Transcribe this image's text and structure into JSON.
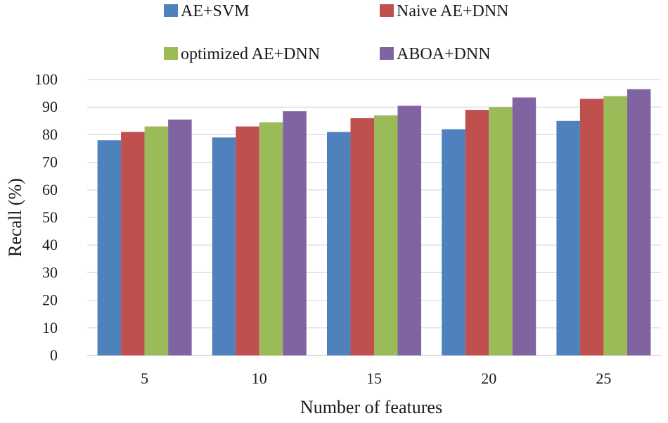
{
  "chart_data": {
    "type": "bar",
    "categories": [
      "5",
      "10",
      "15",
      "20",
      "25"
    ],
    "series": [
      {
        "name": "AE+SVM",
        "color": "#4f81bd",
        "values": [
          78,
          79,
          81,
          82,
          85
        ]
      },
      {
        "name": "Naive AE+DNN",
        "color": "#c0504d",
        "values": [
          81,
          83,
          86,
          89,
          93
        ]
      },
      {
        "name": "optimized AE+DNN",
        "color": "#9bbb59",
        "values": [
          83,
          84.5,
          87,
          90,
          94
        ]
      },
      {
        "name": "ABOA+DNN",
        "color": "#8064a2",
        "values": [
          85.5,
          88.5,
          90.5,
          93.5,
          96.5
        ]
      }
    ],
    "title": "",
    "xlabel": "Number of features",
    "ylabel": "Recall (%)",
    "ylim": [
      0,
      100
    ],
    "yticks": [
      0,
      10,
      20,
      30,
      40,
      50,
      60,
      70,
      80,
      90,
      100
    ],
    "grid": true,
    "legend_position": "top"
  }
}
